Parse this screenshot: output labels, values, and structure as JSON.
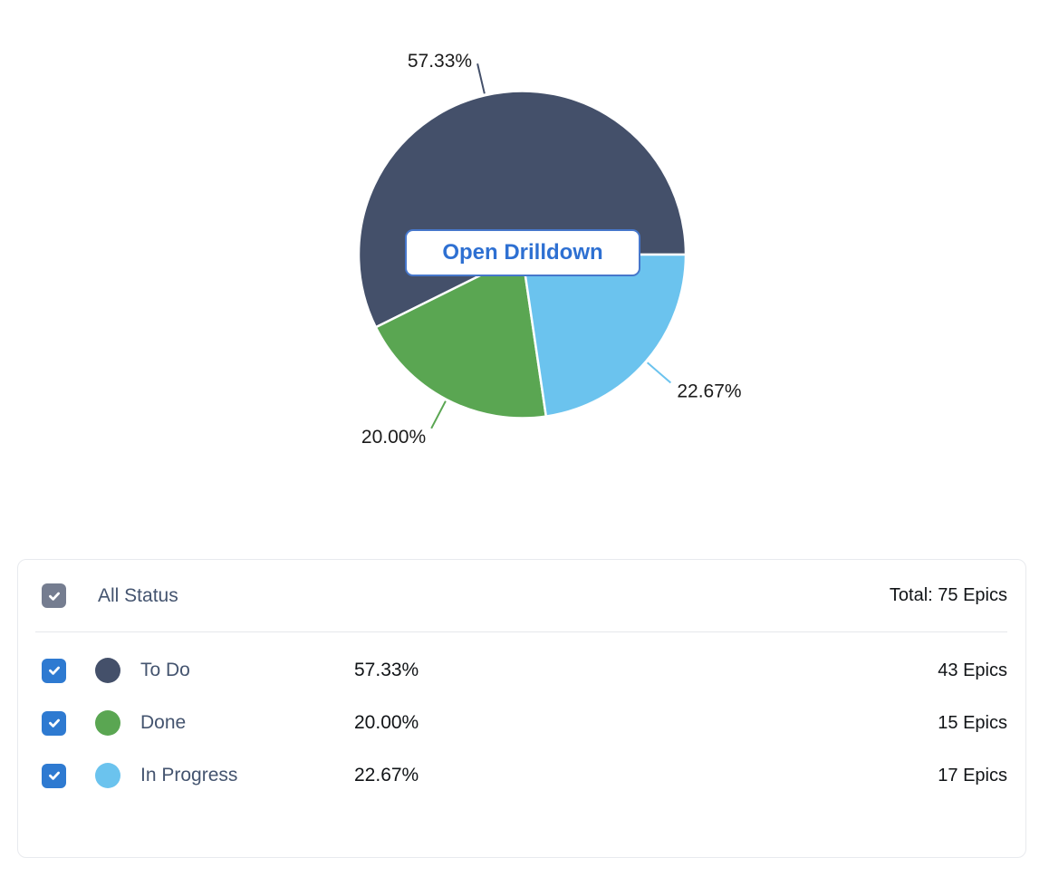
{
  "chart_data": {
    "type": "pie",
    "title": "",
    "start_angle_deg": 0,
    "direction": "counterclockwise",
    "labels_outside": true,
    "total": 75,
    "total_unit": "Epics",
    "slices": [
      {
        "label": "To Do",
        "percent": "57.33%",
        "value_pct": 57.33,
        "count": 43,
        "count_label": "43 Epics",
        "color": "#44506A",
        "checked": true
      },
      {
        "label": "Done",
        "percent": "20.00%",
        "value_pct": 20.0,
        "count": 15,
        "count_label": "15 Epics",
        "color": "#5AA652",
        "checked": true
      },
      {
        "label": "In Progress",
        "percent": "22.67%",
        "value_pct": 22.67,
        "count": 17,
        "count_label": "17 Epics",
        "color": "#6BC3EE",
        "checked": true
      }
    ]
  },
  "drilldown_button": {
    "label": "Open Drilldown"
  },
  "legend": {
    "select_all": {
      "label": "All Status",
      "checked": true
    },
    "total_label": "Total: 75 Epics"
  },
  "colors": {
    "checkbox_checked_blue": "#2E7AD1",
    "all_checkbox_gray": "#757D90",
    "drilldown_text": "#2E70D2",
    "drilldown_border": "#4677CB",
    "label_text": "#44546F",
    "value_text": "#111417",
    "panel_border": "#E8EAEE",
    "divider": "#E5E7EB",
    "slice_gap_stroke": "#FFFFFF"
  }
}
